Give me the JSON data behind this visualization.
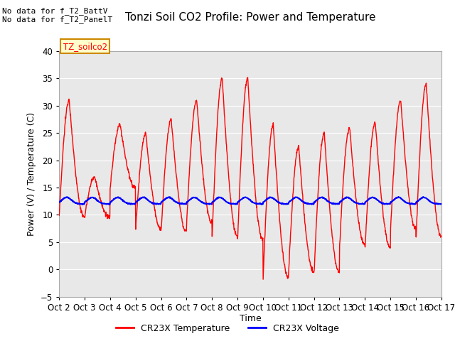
{
  "title": "Tonzi Soil CO2 Profile: Power and Temperature",
  "ylabel": "Power (V) / Temperature (C)",
  "xlabel": "Time",
  "top_left_text1": "No data for f_T2_BattV",
  "top_left_text2": "No data for f_T2_PanelT",
  "legend_label_text": "TZ_soilco2",
  "ylim": [
    -5,
    40
  ],
  "yticks": [
    -5,
    0,
    5,
    10,
    15,
    20,
    25,
    30,
    35,
    40
  ],
  "xtick_labels": [
    "Oct 2",
    "Oct 3",
    "Oct 4",
    "Oct 5",
    "Oct 6",
    "Oct 7",
    "Oct 8",
    "Oct 9",
    "Oct 10",
    "Oct 11",
    "Oct 12",
    "Oct 13",
    "Oct 14",
    "Oct 15",
    "Oct 16",
    "Oct 17"
  ],
  "background_color": "#ffffff",
  "plot_bg_color": "#e8e8e8",
  "grid_color": "#ffffff",
  "temp_color": "#ff0000",
  "volt_color": "#0000ff",
  "legend_temp": "CR23X Temperature",
  "legend_volt": "CR23X Voltage",
  "temp_linewidth": 1.0,
  "volt_linewidth": 1.5,
  "title_fontsize": 11,
  "axis_fontsize": 9,
  "tick_fontsize": 8.5,
  "temp_peaks": [
    31,
    17,
    26.5,
    25,
    27.5,
    31,
    35,
    35,
    26.5,
    22.5,
    25,
    26,
    27,
    31,
    34,
    9.5
  ],
  "temp_troughs": [
    9.5,
    9.5,
    15,
    7.5,
    7,
    8.5,
    6,
    5.5,
    -1.5,
    -0.5,
    -0.5,
    4.5,
    4,
    7.5,
    6,
    8
  ],
  "volt_base": 12.0,
  "volt_bump_amp": 1.2,
  "volt_min": 11.7,
  "volt_max": 14.0
}
